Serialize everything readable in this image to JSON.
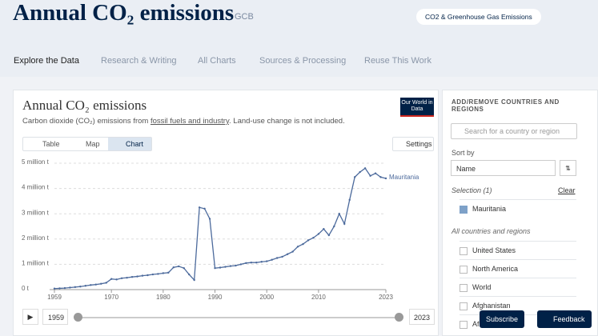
{
  "header": {
    "title": "Annual CO₂ emissions",
    "source": "GCB",
    "topic_button": "CO2 & Greenhouse Gas Emissions"
  },
  "nav": [
    "Explore the Data",
    "Research & Writing",
    "All Charts",
    "Sources & Processing",
    "Reuse This Work"
  ],
  "card": {
    "logo": "Our World in Data",
    "tabs": [
      "Table",
      "Map",
      "Chart"
    ],
    "settings": "Settings",
    "subtitle_pre": "Carbon dioxide (CO₂) emissions from ",
    "subtitle_link": "fossil fuels and industry",
    "subtitle_post": ". Land-use change is not included."
  },
  "chart_data": {
    "type": "line",
    "title": "Annual CO₂ emissions",
    "x": [
      1959,
      1960,
      1961,
      1962,
      1963,
      1964,
      1965,
      1966,
      1967,
      1968,
      1969,
      1970,
      1971,
      1972,
      1973,
      1974,
      1975,
      1976,
      1977,
      1978,
      1979,
      1980,
      1981,
      1982,
      1983,
      1984,
      1985,
      1986,
      1987,
      1988,
      1989,
      1990,
      1991,
      1992,
      1993,
      1994,
      1995,
      1996,
      1997,
      1998,
      1999,
      2000,
      2001,
      2002,
      2003,
      2004,
      2005,
      2006,
      2007,
      2008,
      2009,
      2010,
      2011,
      2012,
      2013,
      2014,
      2015,
      2016,
      2017,
      2018,
      2019,
      2020,
      2021,
      2022,
      2023
    ],
    "series": [
      {
        "name": "Mauritania",
        "color": "#4c6a9c",
        "values": [
          40000,
          50000,
          60000,
          80000,
          100000,
          120000,
          150000,
          180000,
          200000,
          230000,
          270000,
          420000,
          400000,
          450000,
          470000,
          500000,
          520000,
          550000,
          570000,
          600000,
          620000,
          650000,
          670000,
          880000,
          920000,
          850000,
          600000,
          380000,
          3250000,
          3200000,
          2800000,
          850000,
          870000,
          900000,
          930000,
          950000,
          1000000,
          1050000,
          1070000,
          1070000,
          1100000,
          1120000,
          1180000,
          1250000,
          1300000,
          1400000,
          1500000,
          1700000,
          1800000,
          1950000,
          2050000,
          2200000,
          2400000,
          2150000,
          2500000,
          3000000,
          2600000,
          3550000,
          4450000,
          4650000,
          4800000,
          4500000,
          4600000,
          4450000,
          4400000
        ]
      }
    ],
    "xlim": [
      1959,
      2023
    ],
    "xticks": [
      1959,
      1970,
      1980,
      1990,
      2000,
      2010,
      2023
    ],
    "ylim": [
      0,
      5000000
    ],
    "yticks": [
      {
        "value": 0,
        "label": "0 t"
      },
      {
        "value": 1000000,
        "label": "1 million t"
      },
      {
        "value": 2000000,
        "label": "2 million t"
      },
      {
        "value": 3000000,
        "label": "3 million t"
      },
      {
        "value": 4000000,
        "label": "4 million t"
      },
      {
        "value": 5000000,
        "label": "5 million t"
      }
    ],
    "grid": true
  },
  "sidebar": {
    "heading": "ADD/REMOVE COUNTRIES AND REGIONS",
    "search": "Search for a country or region",
    "sort_label": "Sort by",
    "sort_value": "Name",
    "selection": "Selection (1)",
    "clear": "Clear",
    "selected": [
      "Mauritania"
    ],
    "all_label": "All countries and regions",
    "entities": [
      "United States",
      "North America",
      "World",
      "Afghanistan",
      "Africa"
    ]
  },
  "buttons": {
    "subscribe": "Subscribe",
    "feedback": "Feedback"
  }
}
